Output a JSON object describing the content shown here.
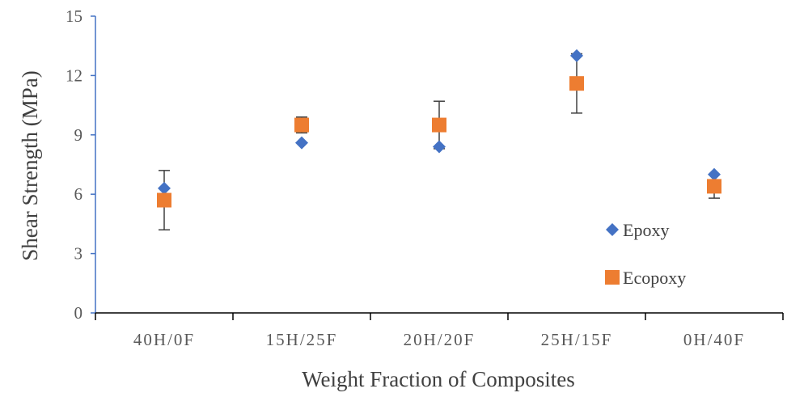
{
  "chart_data": {
    "type": "scatter",
    "title": "",
    "xlabel": "Weight Fraction of Composites",
    "ylabel": "Shear Strength (MPa)",
    "categories": [
      "40H/0F",
      "15H/25F",
      "20H/20F",
      "25H/15F",
      "0H/40F"
    ],
    "ylim": [
      0,
      15
    ],
    "yticks": [
      0,
      3,
      6,
      9,
      12,
      15
    ],
    "grid": false,
    "legend_position": "right",
    "series": [
      {
        "name": "Epoxy",
        "marker": "diamond",
        "color": "#4472C4",
        "values": [
          6.3,
          8.6,
          8.4,
          13.0,
          7.0
        ]
      },
      {
        "name": "Ecopoxy",
        "marker": "square",
        "color": "#ED7D31",
        "values": [
          5.7,
          9.5,
          9.5,
          11.6,
          6.4
        ],
        "error": [
          1.5,
          0.4,
          1.2,
          1.5,
          0.6
        ]
      }
    ]
  }
}
